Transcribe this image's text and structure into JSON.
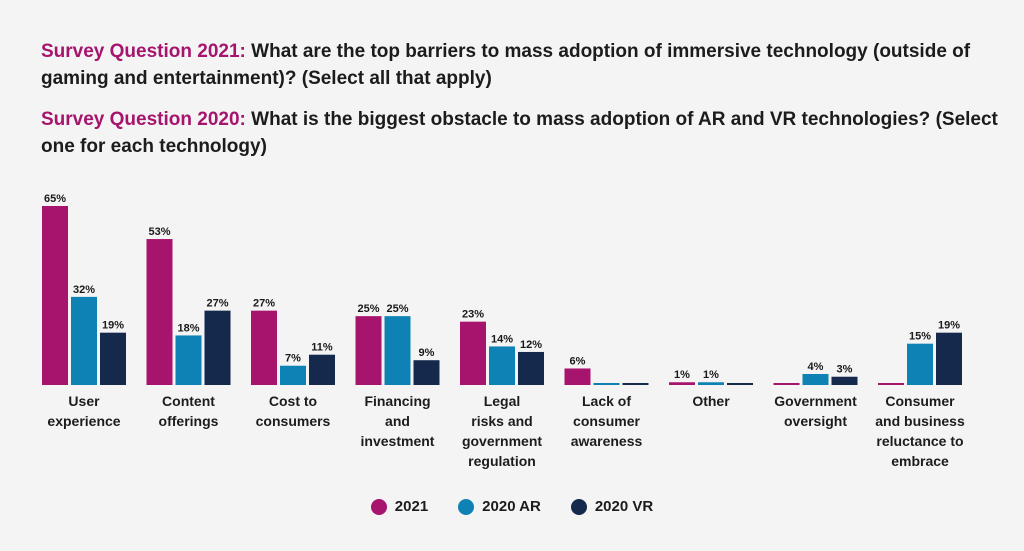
{
  "questions": {
    "q2021_label": "Survey Question 2021:",
    "q2021_text": "What are the top barriers to mass adoption of immersive technology (outside of gaming and entertainment)? (Select all that apply)",
    "q2020_label": "Survey Question 2020:",
    "q2020_text": "What is the biggest obstacle to mass adoption of AR and VR technologies? (Select one for each technology)"
  },
  "colors": {
    "series_2021": "#a6146e",
    "series_2020_ar": "#0f82b5",
    "series_2020_vr": "#15294d",
    "question_label": "#a6146e"
  },
  "chart_data": {
    "type": "bar",
    "title": "",
    "xlabel": "",
    "ylabel": "",
    "ylim": [
      0,
      65
    ],
    "grid": false,
    "legend_position": "bottom-center",
    "categories": [
      [
        "User",
        "experience"
      ],
      [
        "Content",
        "offerings"
      ],
      [
        "Cost to",
        "consumers"
      ],
      [
        "Financing",
        "and",
        "investment"
      ],
      [
        "Legal",
        "risks and",
        "government",
        "regulation"
      ],
      [
        "Lack of",
        "consumer",
        "awareness"
      ],
      [
        "Other"
      ],
      [
        "Government",
        "oversight"
      ],
      [
        "Consumer",
        "and business",
        "reluctance to",
        "embrace"
      ]
    ],
    "series": [
      {
        "name": "2021",
        "color_key": "series_2021",
        "values": [
          65,
          53,
          27,
          25,
          23,
          6,
          1,
          0,
          0
        ],
        "labels": [
          "65%",
          "53%",
          "27%",
          "25%",
          "23%",
          "6%",
          "1%",
          "",
          ""
        ]
      },
      {
        "name": "2020 AR",
        "color_key": "series_2020_ar",
        "values": [
          32,
          18,
          7,
          25,
          14,
          0,
          1,
          4,
          15
        ],
        "labels": [
          "32%",
          "18%",
          "7%",
          "25%",
          "14%",
          "",
          "1%",
          "4%",
          "15%"
        ]
      },
      {
        "name": "2020 VR",
        "color_key": "series_2020_vr",
        "values": [
          19,
          27,
          11,
          9,
          12,
          0,
          0,
          3,
          19
        ],
        "labels": [
          "19%",
          "27%",
          "11%",
          "9%",
          "12%",
          "",
          "",
          "3%",
          "19%"
        ]
      }
    ]
  },
  "legend": {
    "items": [
      "2021",
      "2020 AR",
      "2020 VR"
    ]
  }
}
